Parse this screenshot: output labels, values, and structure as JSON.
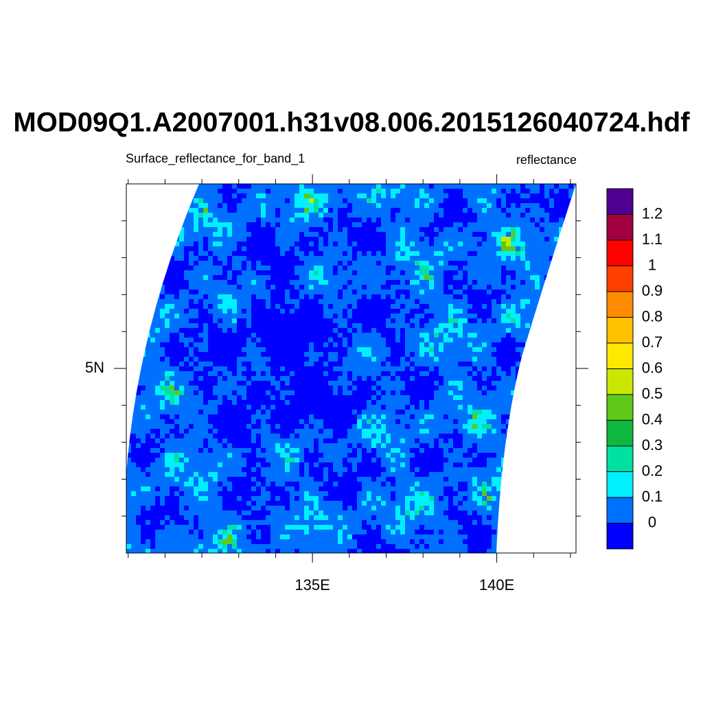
{
  "chart_data": {
    "type": "map",
    "title": "MOD09Q1.A2007001.h31v08.006.2015126040724.hdf",
    "left_string": "Surface_reflectance_for_band_1",
    "right_string": "reflectance",
    "xlim": [
      129.95,
      142.15
    ],
    "ylim": [
      0,
      10
    ],
    "xticks": [
      {
        "value": 135,
        "label": "135E"
      },
      {
        "value": 140,
        "label": "140E"
      }
    ],
    "yticks": [
      {
        "value": 5,
        "label": "5N"
      }
    ],
    "xminorticks": [
      130,
      131,
      132,
      133,
      134,
      136,
      137,
      138,
      139,
      141,
      142
    ],
    "yminorticks": [
      1,
      2,
      3,
      4,
      6,
      7,
      8,
      9
    ],
    "colorbar": {
      "levels": [
        0,
        0.1,
        0.2,
        0.3,
        0.4,
        0.5,
        0.6,
        0.7,
        0.8,
        0.9,
        1,
        1.1,
        1.2
      ],
      "colors": [
        "#0000ff",
        "#0070ff",
        "#00f0ff",
        "#00e0a0",
        "#10b840",
        "#60c818",
        "#c8e800",
        "#ffe800",
        "#ffc000",
        "#ff8c00",
        "#ff4000",
        "#ff0000",
        "#a00040",
        "#500090"
      ]
    }
  }
}
